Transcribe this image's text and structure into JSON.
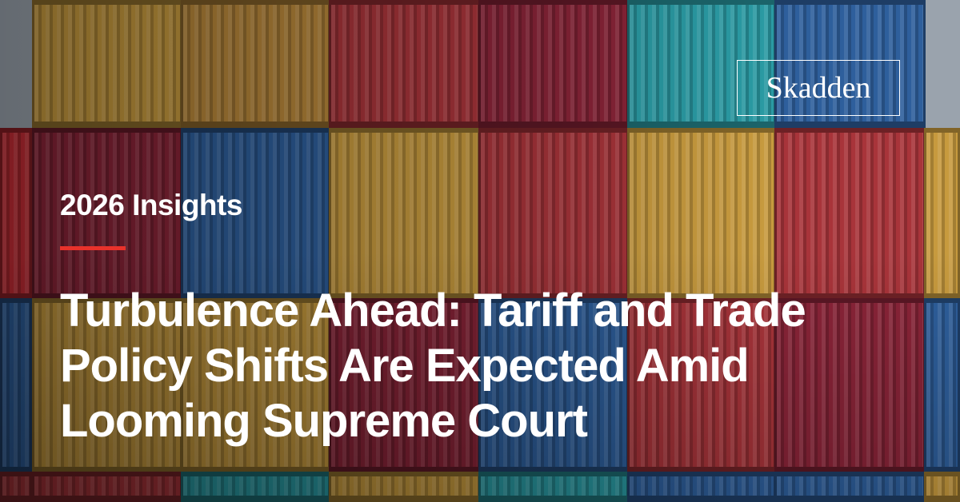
{
  "brand": {
    "logo_text": "Skadden"
  },
  "kicker": "2026 Insights",
  "headline": "Turbulence Ahead: Tariff and Trade Policy Shifts Are Expected Amid Looming Supreme Court",
  "colors": {
    "accent_rule": "#e8322b",
    "text": "#ffffff"
  }
}
